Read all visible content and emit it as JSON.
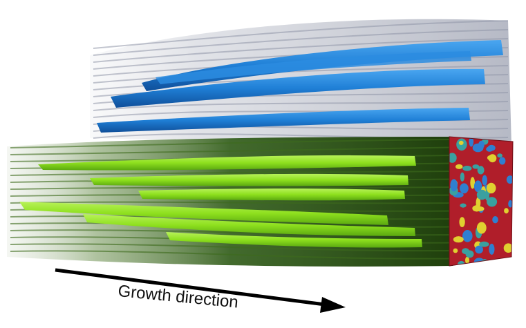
{
  "figure": {
    "caption": "Growth direction",
    "colors": {
      "blue_phase": "#1f7fd6",
      "green_phase": "#8ee01e",
      "dark_green": "#2f5a12",
      "gray_phase": "#b8bcc8",
      "cross_section_red": "#b01e2a",
      "cross_section_blue": "#2f7fd0",
      "cross_section_yellow": "#e0d030",
      "arrow": "#000000"
    }
  }
}
